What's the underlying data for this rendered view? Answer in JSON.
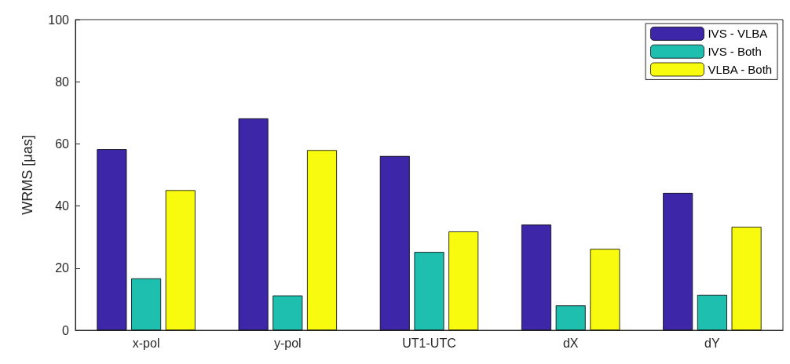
{
  "chart_data": {
    "type": "bar",
    "ylabel": "WRMS [μas]",
    "categories": [
      "x-pol",
      "y-pol",
      "UT1-UTC",
      "dX",
      "dY"
    ],
    "series": [
      {
        "name": "IVS - VLBA",
        "color": "#3e26a8",
        "values": [
          58.3,
          68.2,
          56.1,
          34.0,
          44.2
        ]
      },
      {
        "name": "IVS - Both",
        "color": "#1fbfb0",
        "values": [
          16.7,
          11.2,
          25.2,
          8.0,
          11.4
        ]
      },
      {
        "name": "VLBA - Both",
        "color": "#f9fb0e",
        "values": [
          45.1,
          58.0,
          31.8,
          26.2,
          33.3
        ]
      }
    ],
    "ylim": [
      0,
      100
    ],
    "yticks": [
      0,
      20,
      40,
      60,
      80,
      100
    ],
    "grid": false,
    "legend": "top right"
  }
}
